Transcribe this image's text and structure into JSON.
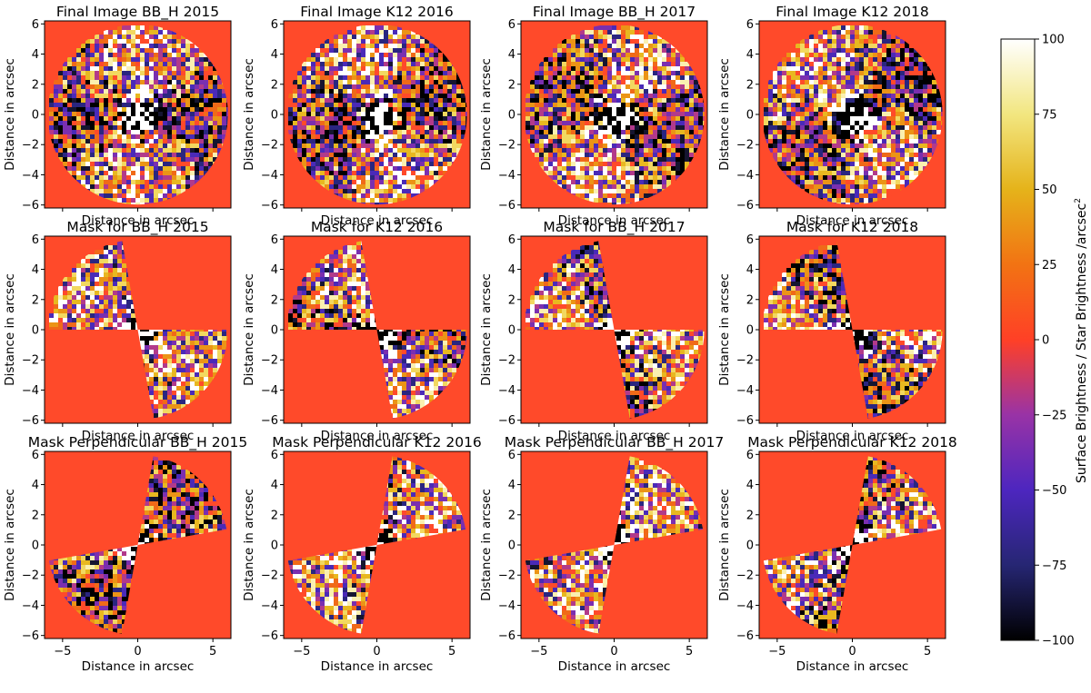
{
  "chart_data": {
    "type": "heatmap",
    "panels": [
      {
        "title": "Final Image BB_H 2015",
        "filter": "BB_H",
        "year": 2015,
        "kind": "full",
        "seed": 11
      },
      {
        "title": "Final Image K12 2016",
        "filter": "K12",
        "year": 2016,
        "kind": "full",
        "seed": 23
      },
      {
        "title": "Final Image BB_H 2017",
        "filter": "BB_H",
        "year": 2017,
        "kind": "full",
        "seed": 37
      },
      {
        "title": "Final Image K12 2018",
        "filter": "K12",
        "year": 2018,
        "kind": "full",
        "seed": 41
      },
      {
        "title": "Mask for BB_H 2015",
        "filter": "BB_H",
        "year": 2015,
        "kind": "mask",
        "seed": 53
      },
      {
        "title": "Mask for K12 2016",
        "filter": "K12",
        "year": 2016,
        "kind": "mask",
        "seed": 67
      },
      {
        "title": "Mask for BB_H 2017",
        "filter": "BB_H",
        "year": 2017,
        "kind": "mask",
        "seed": 71
      },
      {
        "title": "Mask for K12 2018",
        "filter": "K12",
        "year": 2018,
        "kind": "mask",
        "seed": 83
      },
      {
        "title": "Mask Perpendicular BB_H 2015",
        "filter": "BB_H",
        "year": 2015,
        "kind": "perp",
        "seed": 97
      },
      {
        "title": "Mask Perpendicular K12 2016",
        "filter": "K12",
        "year": 2016,
        "kind": "perp",
        "seed": 101
      },
      {
        "title": "Mask Perpendicular BB_H 2017",
        "filter": "BB_H",
        "year": 2017,
        "kind": "perp",
        "seed": 113
      },
      {
        "title": "Mask Perpendicular K12 2018",
        "filter": "K12",
        "year": 2018,
        "kind": "perp",
        "seed": 127
      }
    ],
    "xlabel": "Distance in arcsec",
    "ylabel": "Distance in arcsec",
    "xlim": [
      -6.2,
      6.2
    ],
    "ylim": [
      -6.2,
      6.2
    ],
    "x_ticks": [
      -5,
      0,
      5
    ],
    "x_tick_labels": [
      "−5",
      "0",
      "5"
    ],
    "y_ticks": [
      6,
      4,
      2,
      0,
      -2,
      -4,
      -6
    ],
    "y_tick_labels": [
      "6",
      "4",
      "2",
      "0",
      "−2",
      "−4",
      "−6"
    ],
    "field_radius_arcsec": 6.0,
    "colorbar": {
      "label": "Surface Brightness / Star Brightness /arcsec",
      "label_superscript": "2",
      "range": [
        -100,
        100
      ],
      "ticks": [
        100,
        75,
        50,
        25,
        0,
        -25,
        -50,
        -75,
        -100
      ],
      "tick_labels": [
        "100",
        "75",
        "50",
        "25",
        "0",
        "−25",
        "−50",
        "−75",
        "−100"
      ],
      "colormap": "CMRmap"
    },
    "colors": {
      "background_zero": "#ff4a2a",
      "cmap_top": "#ffffff",
      "cmap_bottom": "#000000"
    }
  }
}
